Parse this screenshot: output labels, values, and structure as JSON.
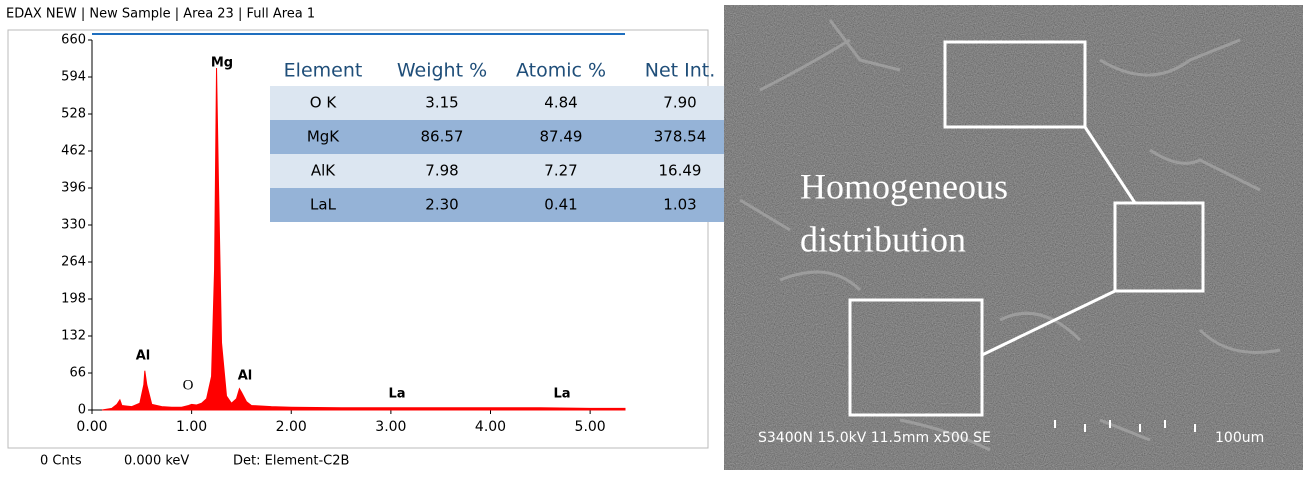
{
  "header": {
    "title": "EDAX NEW | New Sample | Area 23 | Full Area 1"
  },
  "chart_data": {
    "type": "area",
    "color": "#ff0000",
    "x": [
      0.1,
      0.2,
      0.25,
      0.28,
      0.3,
      0.4,
      0.48,
      0.52,
      0.53,
      0.55,
      0.6,
      0.7,
      0.8,
      0.9,
      0.97,
      1.0,
      1.05,
      1.1,
      1.15,
      1.2,
      1.23,
      1.25,
      1.27,
      1.3,
      1.35,
      1.4,
      1.45,
      1.48,
      1.5,
      1.55,
      1.6,
      1.8,
      2.0,
      2.5,
      3.0,
      3.5,
      4.0,
      4.5,
      5.0,
      5.35
    ],
    "values": [
      0,
      3,
      10,
      18,
      8,
      6,
      12,
      45,
      70,
      45,
      10,
      6,
      5,
      5,
      8,
      10,
      9,
      12,
      20,
      60,
      250,
      610,
      400,
      120,
      25,
      12,
      20,
      38,
      32,
      15,
      8,
      6,
      5,
      4,
      4,
      4,
      4,
      4,
      3,
      3
    ],
    "xlim": [
      0,
      5.35
    ],
    "ylim": [
      0,
      660
    ],
    "yticks": [
      0,
      66,
      132,
      198,
      264,
      330,
      396,
      462,
      528,
      594,
      660
    ],
    "xticks": [
      {
        "value": 0,
        "label": "0.00"
      },
      {
        "value": 1,
        "label": "1.00"
      },
      {
        "value": 2,
        "label": "2.00"
      },
      {
        "value": 3,
        "label": "3.00"
      },
      {
        "value": 4,
        "label": "4.00"
      },
      {
        "value": 5,
        "label": "5.00"
      }
    ],
    "annotations": [
      "Mg",
      "Al",
      "O",
      "Al",
      "La",
      "La"
    ]
  },
  "table": {
    "columns": [
      "Element",
      "Weight %",
      "Atomic %",
      "Net Int."
    ],
    "rows": [
      [
        "O K",
        "3.15",
        "4.84",
        "7.90"
      ],
      [
        "MgK",
        "86.57",
        "87.49",
        "378.54"
      ],
      [
        "AlK",
        "7.98",
        "7.27",
        "16.49"
      ],
      [
        "LaL",
        "2.30",
        "0.41",
        "1.03"
      ]
    ]
  },
  "footer": {
    "counts": "0 Cnts",
    "energy": "0.000 keV",
    "detector": "Det: Element-C2B"
  },
  "image": {
    "caption": [
      "Homogeneous",
      "distribution"
    ],
    "info": "S3400N 15.0kV 11.5mm x500 SE",
    "scale": "100um"
  }
}
